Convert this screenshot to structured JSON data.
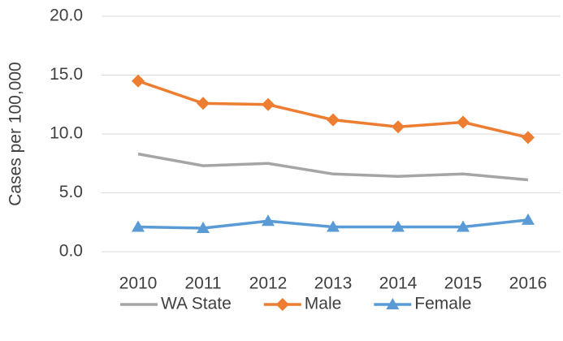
{
  "chart_data": {
    "type": "line",
    "y_label": "Cases per 100,000",
    "categories": [
      "2010",
      "2011",
      "2012",
      "2013",
      "2014",
      "2015",
      "2016"
    ],
    "series": [
      {
        "name": "WA State",
        "color": "#a5a5a5",
        "marker": "none",
        "values": [
          8.3,
          7.3,
          7.5,
          6.6,
          6.4,
          6.6,
          6.1
        ]
      },
      {
        "name": "Male",
        "color": "#ed7d31",
        "marker": "diamond",
        "values": [
          14.5,
          12.6,
          12.5,
          11.2,
          10.6,
          11.0,
          9.7
        ]
      },
      {
        "name": "Female",
        "color": "#5b9bd5",
        "marker": "triangle",
        "values": [
          2.1,
          2.0,
          2.6,
          2.1,
          2.1,
          2.1,
          2.7
        ]
      }
    ],
    "ylim": [
      0,
      20
    ],
    "yticks": [
      {
        "value": 0,
        "label": "0.0"
      },
      {
        "value": 5,
        "label": "5.0"
      },
      {
        "value": 10,
        "label": "10.0"
      },
      {
        "value": 15,
        "label": "15.0"
      },
      {
        "value": 20,
        "label": "20.0"
      }
    ],
    "grid": true,
    "legend": "bottom"
  }
}
